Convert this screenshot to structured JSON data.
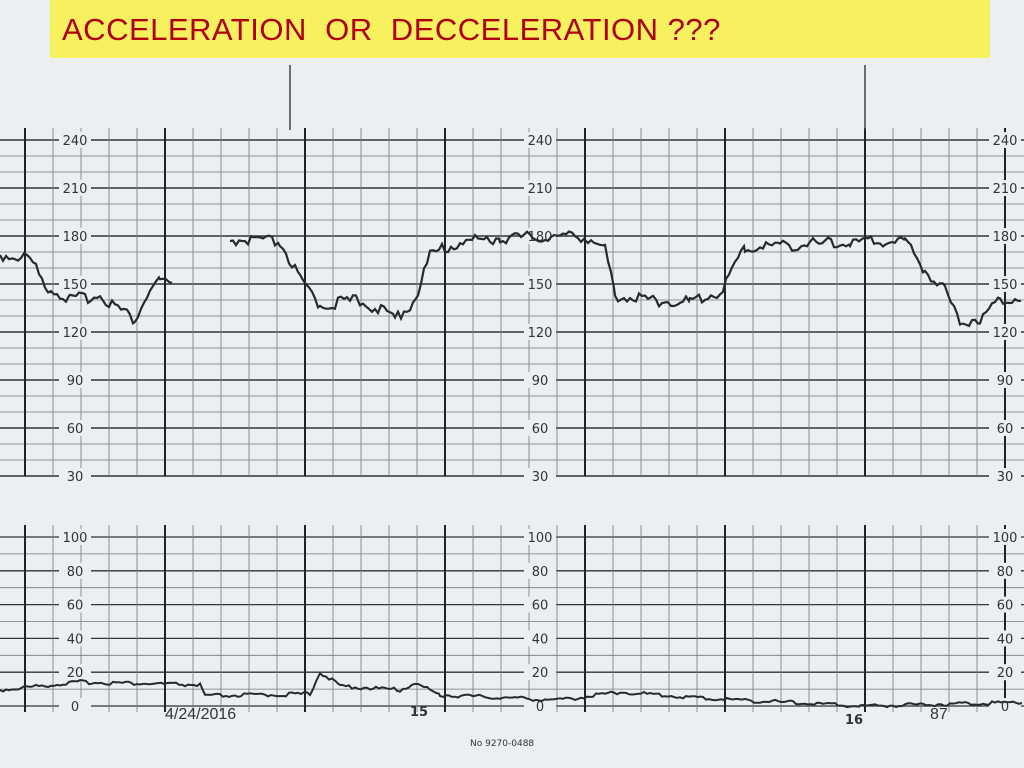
{
  "title": "ACCELERATION  OR  DECCELERATION ???",
  "strip": {
    "heart_rate_scale": [
      240,
      210,
      180,
      150,
      120,
      90,
      60,
      30
    ],
    "contraction_scale": [
      100,
      80,
      60,
      40,
      20,
      0
    ],
    "page_marks": [
      "15",
      "16"
    ],
    "paper_number": "No 9270-0488"
  },
  "footer": {
    "date": "4/24/2016",
    "slide_number": "87"
  }
}
